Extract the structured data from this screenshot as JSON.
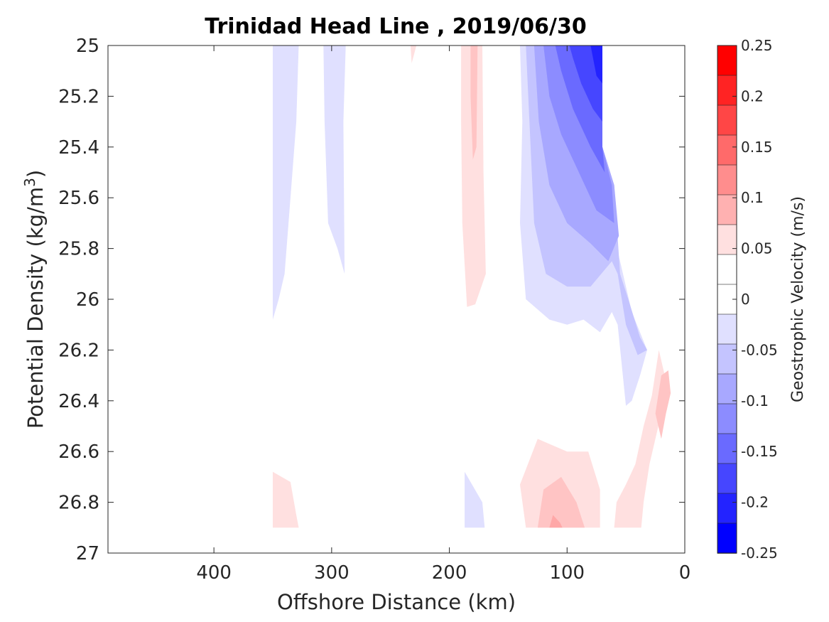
{
  "chart_data": {
    "type": "heatmap",
    "title": "Trinidad Head Line , 2019/06/30",
    "xlabel": "Offshore Distance (km)",
    "ylabel_prefix": "Potential Density (kg/m",
    "ylabel_sup": "3",
    "ylabel_suffix": ")",
    "xlim": [
      490,
      0
    ],
    "ylim": [
      25,
      27
    ],
    "x_reversed": true,
    "y_reversed": true,
    "x_ticks": [
      "400",
      "300",
      "200",
      "100",
      "0"
    ],
    "x_tick_values": [
      400,
      300,
      200,
      100,
      0
    ],
    "y_ticks": [
      "25",
      "25.2",
      "25.4",
      "25.6",
      "25.8",
      "26",
      "26.2",
      "26.4",
      "26.6",
      "26.8",
      "27"
    ],
    "y_tick_values": [
      25,
      25.2,
      25.4,
      25.6,
      25.8,
      26,
      26.2,
      26.4,
      26.6,
      26.8,
      27
    ],
    "colorbar": {
      "label": "Geostrophic Velocity (m/s)",
      "range": [
        -0.25,
        0.25
      ],
      "ticks": [
        "0.25",
        "0.2",
        "0.15",
        "0.1",
        "0.05",
        "0",
        "-0.05",
        "-0.1",
        "-0.15",
        "-0.2",
        "-0.25"
      ],
      "tick_values": [
        0.25,
        0.2,
        0.15,
        0.1,
        0.05,
        0,
        -0.05,
        -0.1,
        -0.15,
        -0.2,
        -0.25
      ],
      "level_colors": [
        "#ff0000",
        "#ff2323",
        "#ff4646",
        "#ff6a6a",
        "#ff8d8d",
        "#ffb1b1",
        "#ffe0e0",
        "#ffffff",
        "#ffffff",
        "#e0e0ff",
        "#c4c4ff",
        "#a8a8ff",
        "#8c8cff",
        "#6a6aff",
        "#4646ff",
        "#2323ff",
        "#0000ff"
      ]
    },
    "contours": [
      {
        "level": -0.05,
        "color": "#e0e0ff",
        "points": [
          [
            350,
            25
          ],
          [
            328,
            25
          ],
          [
            330,
            25.3
          ],
          [
            335,
            25.6
          ],
          [
            340,
            25.9
          ],
          [
            345,
            26
          ],
          [
            350,
            26.08
          ]
        ]
      },
      {
        "level": -0.05,
        "color": "#e0e0ff",
        "points": [
          [
            307,
            25
          ],
          [
            288,
            25
          ],
          [
            290,
            25.3
          ],
          [
            289,
            25.9
          ],
          [
            295,
            25.8
          ],
          [
            303,
            25.7
          ],
          [
            306,
            25.3
          ]
        ]
      },
      {
        "level": -0.05,
        "color": "#e0e0ff",
        "points": [
          [
            140,
            25
          ],
          [
            70,
            25
          ],
          [
            70,
            25.4
          ],
          [
            65,
            25.5
          ],
          [
            60,
            25.75
          ],
          [
            55,
            25.85
          ],
          [
            45,
            26.05
          ],
          [
            32,
            26.2
          ],
          [
            38,
            26.3
          ],
          [
            45,
            26.4
          ],
          [
            50,
            26.42
          ],
          [
            57,
            26.1
          ],
          [
            62,
            26.05
          ],
          [
            72,
            26.13
          ],
          [
            86,
            26.08
          ],
          [
            100,
            26.1
          ],
          [
            115,
            26.08
          ],
          [
            135,
            26
          ],
          [
            140,
            25.7
          ],
          [
            138,
            25.3
          ]
        ]
      },
      {
        "level": -0.05,
        "color": "#e0e0ff",
        "points": [
          [
            187,
            26.68
          ],
          [
            172,
            26.8
          ],
          [
            170,
            26.9
          ],
          [
            187,
            26.9
          ]
        ]
      },
      {
        "level": -0.1,
        "color": "#c4c4ff",
        "points": [
          [
            135,
            25
          ],
          [
            70,
            25
          ],
          [
            70,
            25.4
          ],
          [
            60,
            25.55
          ],
          [
            55,
            25.9
          ],
          [
            48,
            26
          ],
          [
            38,
            26.15
          ],
          [
            32,
            26.2
          ],
          [
            40,
            26.22
          ],
          [
            50,
            26.1
          ],
          [
            57,
            25.9
          ],
          [
            62,
            25.85
          ],
          [
            80,
            25.95
          ],
          [
            100,
            25.95
          ],
          [
            118,
            25.9
          ],
          [
            128,
            25.7
          ],
          [
            132,
            25.3
          ]
        ]
      },
      {
        "level": -0.15,
        "color": "#a8a8ff",
        "points": [
          [
            128,
            25
          ],
          [
            70,
            25
          ],
          [
            70,
            25.4
          ],
          [
            60,
            25.55
          ],
          [
            56,
            25.75
          ],
          [
            65,
            25.85
          ],
          [
            80,
            25.78
          ],
          [
            100,
            25.7
          ],
          [
            115,
            25.55
          ],
          [
            124,
            25.3
          ]
        ]
      },
      {
        "level": -0.2,
        "color": "#8c8cff",
        "points": [
          [
            120,
            25
          ],
          [
            70,
            25
          ],
          [
            70,
            25.4
          ],
          [
            62,
            25.55
          ],
          [
            60,
            25.7
          ],
          [
            75,
            25.65
          ],
          [
            90,
            25.5
          ],
          [
            105,
            25.35
          ],
          [
            115,
            25.2
          ]
        ]
      },
      {
        "level": -0.25,
        "color": "#6a6aff",
        "points": [
          [
            110,
            25
          ],
          [
            70,
            25
          ],
          [
            70,
            25.4
          ],
          [
            68,
            25.5
          ],
          [
            80,
            25.4
          ],
          [
            95,
            25.25
          ],
          [
            105,
            25.1
          ]
        ]
      },
      {
        "level": -0.3,
        "color": "#4646ff",
        "points": [
          [
            98,
            25
          ],
          [
            70,
            25
          ],
          [
            70,
            25.3
          ],
          [
            78,
            25.25
          ],
          [
            88,
            25.15
          ],
          [
            95,
            25.05
          ]
        ]
      },
      {
        "level": -0.35,
        "color": "#2323ff",
        "points": [
          [
            80,
            25
          ],
          [
            70,
            25
          ],
          [
            70,
            25.15
          ],
          [
            75,
            25.12
          ]
        ]
      },
      {
        "level": 0.05,
        "color": "#ffe0e0",
        "points": [
          [
            190,
            25
          ],
          [
            172,
            25
          ],
          [
            171,
            25.5
          ],
          [
            169,
            25.9
          ],
          [
            178,
            26.02
          ],
          [
            185,
            26.03
          ],
          [
            189,
            25.7
          ],
          [
            190,
            25.3
          ]
        ]
      },
      {
        "level": 0.05,
        "color": "#ffe0e0",
        "points": [
          [
            233,
            25
          ],
          [
            228,
            25
          ],
          [
            232,
            25.07
          ]
        ]
      },
      {
        "level": 0.05,
        "color": "#ffe0e0",
        "points": [
          [
            350,
            26.68
          ],
          [
            335,
            26.72
          ],
          [
            330,
            26.85
          ],
          [
            328,
            26.9
          ],
          [
            350,
            26.9
          ]
        ]
      },
      {
        "level": 0.05,
        "color": "#ffe0e0",
        "points": [
          [
            135,
            26.9
          ],
          [
            140,
            26.73
          ],
          [
            125,
            26.55
          ],
          [
            100,
            26.6
          ],
          [
            82,
            26.6
          ],
          [
            72,
            26.75
          ],
          [
            72,
            26.9
          ]
        ]
      },
      {
        "level": 0.05,
        "color": "#ffe0e0",
        "points": [
          [
            60,
            26.9
          ],
          [
            58,
            26.8
          ],
          [
            50,
            26.73
          ],
          [
            42,
            26.65
          ],
          [
            35,
            26.5
          ],
          [
            28,
            26.38
          ],
          [
            22,
            26.2
          ],
          [
            17,
            26.3
          ],
          [
            20,
            26.45
          ],
          [
            25,
            26.55
          ],
          [
            30,
            26.65
          ],
          [
            35,
            26.8
          ],
          [
            37,
            26.9
          ]
        ]
      },
      {
        "level": 0.1,
        "color": "#ffc4c4",
        "points": [
          [
            182,
            25
          ],
          [
            176,
            25
          ],
          [
            177,
            25.4
          ],
          [
            180,
            25.45
          ],
          [
            182,
            25.2
          ]
        ]
      },
      {
        "level": 0.1,
        "color": "#ffc4c4",
        "points": [
          [
            125,
            26.9
          ],
          [
            120,
            26.75
          ],
          [
            105,
            26.7
          ],
          [
            92,
            26.8
          ],
          [
            85,
            26.9
          ]
        ]
      },
      {
        "level": 0.1,
        "color": "#ffc4c4",
        "points": [
          [
            25,
            26.45
          ],
          [
            20,
            26.3
          ],
          [
            14,
            26.28
          ],
          [
            12,
            26.37
          ],
          [
            16,
            26.45
          ],
          [
            20,
            26.55
          ]
        ]
      },
      {
        "level": 0.15,
        "color": "#ffa8a8",
        "points": [
          [
            115,
            26.9
          ],
          [
            112,
            26.85
          ],
          [
            106,
            26.88
          ],
          [
            104,
            26.9
          ]
        ]
      }
    ]
  }
}
